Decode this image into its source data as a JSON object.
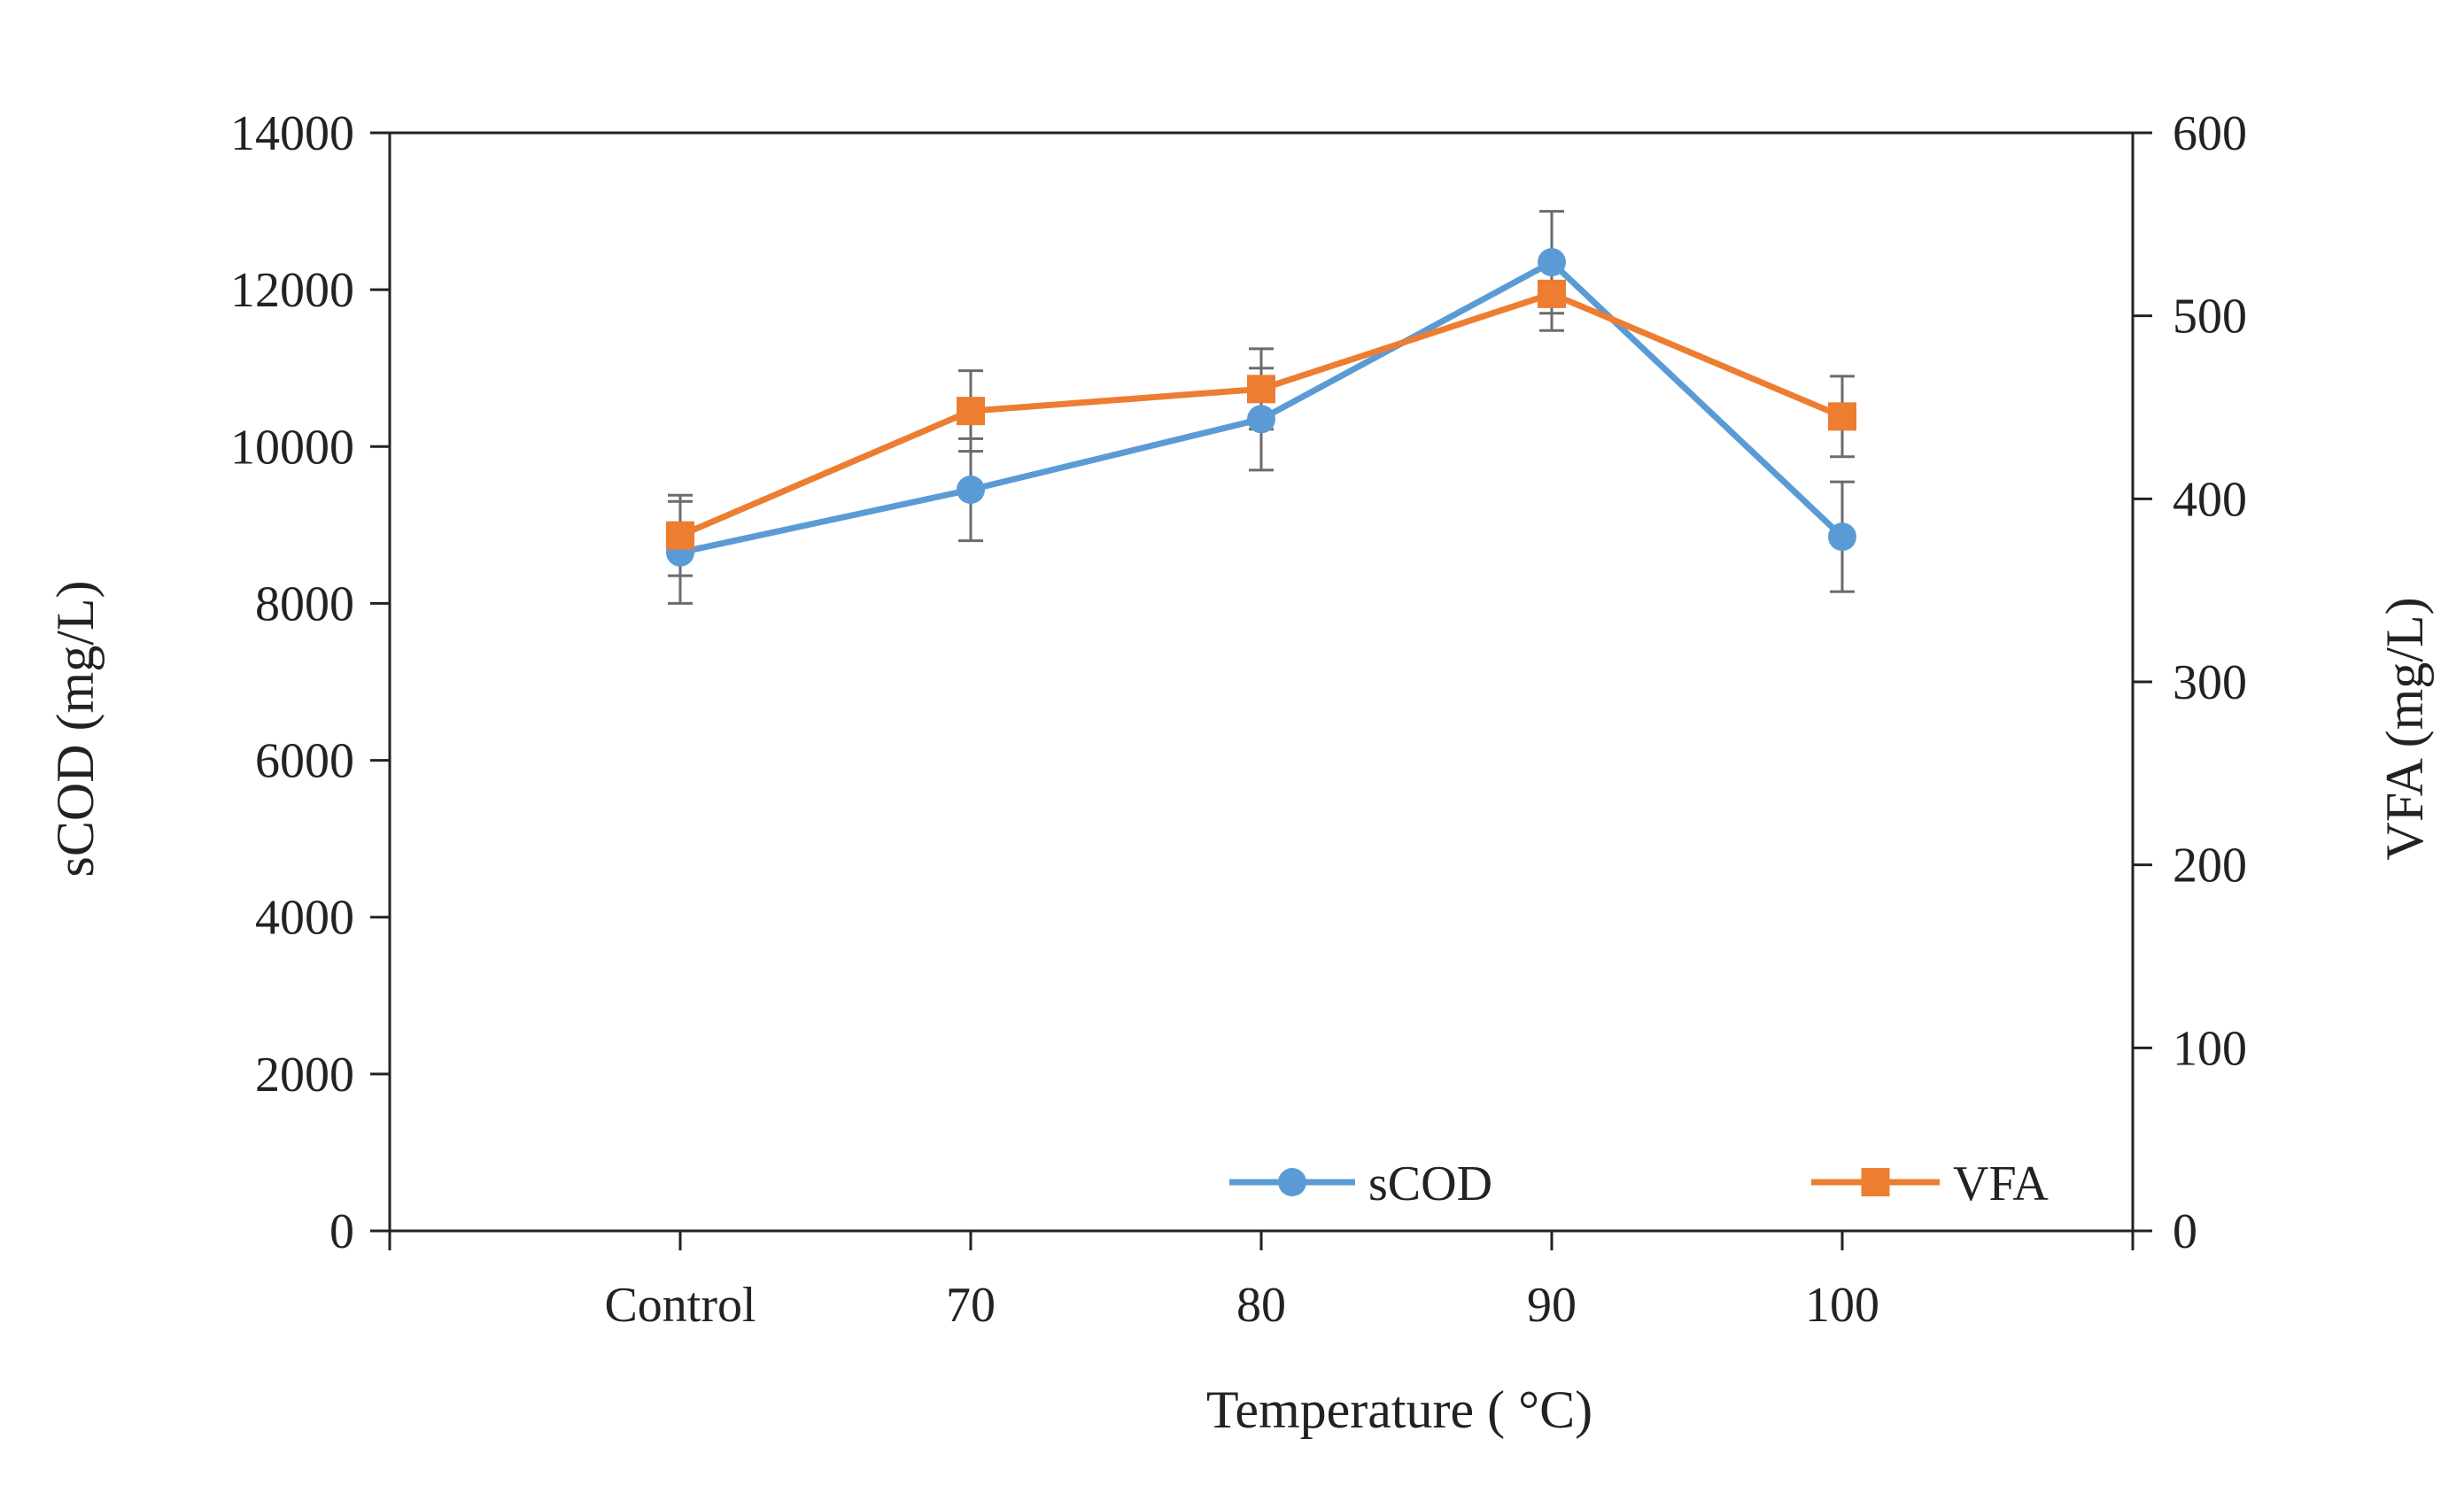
{
  "chart_data": {
    "type": "line",
    "title": "",
    "xlabel": "Temperature ( °C)",
    "ylabel": "sCOD (mg/L)",
    "y2label": "VFA (mg/L)",
    "categories": [
      "Control",
      "70",
      "80",
      "90",
      "100"
    ],
    "ylim": [
      0,
      14000
    ],
    "y2lim": [
      0,
      600
    ],
    "yticks": [
      "0",
      "2000",
      "4000",
      "6000",
      "8000",
      "10000",
      "12000",
      "14000"
    ],
    "y2ticks": [
      "0",
      "100",
      "200",
      "300",
      "400",
      "500",
      "600"
    ],
    "series": [
      {
        "name": "sCOD",
        "axis": "left",
        "marker": "circle",
        "color": "#5b9bd5",
        "values": [
          8650,
          9450,
          10350,
          12350,
          8850
        ],
        "errors": [
          650,
          650,
          650,
          650,
          700
        ]
      },
      {
        "name": "VFA",
        "axis": "right",
        "marker": "square",
        "color": "#ed7d31",
        "values": [
          380,
          448,
          460,
          512,
          445
        ],
        "errors": [
          22,
          22,
          22,
          20,
          22
        ]
      }
    ],
    "legend": "bottom-inside"
  }
}
